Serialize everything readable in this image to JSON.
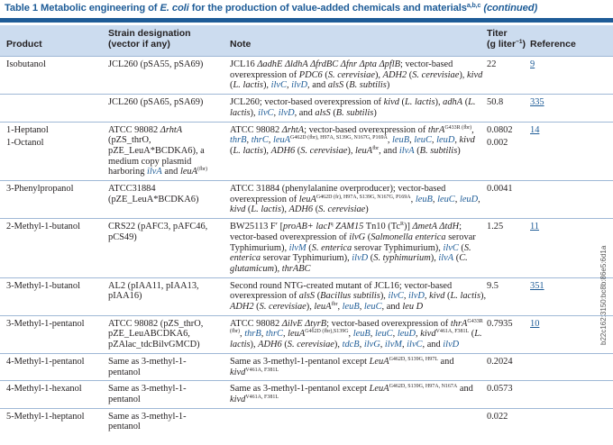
{
  "caption": {
    "table_label": "Table 1",
    "title_part1": "Metabolic engineering of ",
    "title_organism": "E. coli",
    "title_part2": " for the production of value-added chemicals and materials",
    "title_sup": "a,b,c",
    "title_suffix": "(continued)"
  },
  "header": {
    "product": "Product",
    "strain_line1": "Strain designation",
    "strain_line2": "(vector if any)",
    "note": "Note",
    "titer_line1": "Titer",
    "titer_line2": "(g liter",
    "titer_sup": "−1",
    "titer_close": ")",
    "reference": "Reference"
  },
  "watermark": "b22c162:3150:bc8b:86e5:6d1a",
  "rows": [
    {
      "product": "Isobutanol",
      "strain": "JCL260 (pSA55, pSA69)",
      "note_html": "JCL16 <i>ΔadhE ΔldhA ΔfrdBC Δfnr Δpta ΔpflB</i>; vector-based overexpression of <i>PDC6</i> (<i>S. cerevisiae</i>), <i>ADH2</i> (<i>S. cerevisiae</i>), <i>kivd</i> (<i>L. lactis</i>), <i class=\"blue\">ilvC</i>, <i class=\"blue\">ilvD</i>, and <i>alsS</i> (<i>B. subtilis</i>)",
      "titer": "22",
      "reference": "9"
    },
    {
      "product": "",
      "strain": "JCL260 (pSA65, pSA69)",
      "note_html": "JCL260; vector-based overexpression of <i>kivd</i> (<i>L. lactis</i>), <i>adhA</i> (<i>L. lactis</i>), <i class=\"blue\">ilvC</i>, <i class=\"blue\">ilvD</i>, and <i>alsS</i> (<i>B. subtilis</i>)",
      "titer": "50.8",
      "reference": "335"
    },
    {
      "product": "1-Heptanol",
      "product2": "1-Octanol",
      "strain_html": "ATCC 98082 <i>ΔrhtA</i><br>(pZS_thrO,<br>pZE_LeuA*BCDKA6), a<br>medium copy plasmid<br>harboring <i class=\"blue\">ilvA</i> and <i>leuA</i><sup class=\"g\">(fbr)</sup>",
      "note_html": "ATCC 98082 <i>ΔrhtA</i>; vector-based overexpression of <i>thrA</i><sup class=\"g\">G433R (fbr)</sup>, <i class=\"blue\">thrB</i>, <i class=\"blue\">thrC</i>, <i class=\"blue\">leuA</i><sup class=\"g\">G462D (fbr), H97A, S139G, N167G, P169A</sup>, <i class=\"blue\">leuB</i>, <i class=\"blue\">leuC</i>, <i class=\"blue\">leuD</i>, <i>kivd</i> (<i>L. lactis</i>), <i>ADH6</i> (<i>S. cerevisiae</i>), <i>leuA</i><sup class=\"g\">fbr</sup>, and <i class=\"blue\">ilvA</i> (<i>B. subtilis</i>)",
      "titer": "0.0802",
      "titer2": "0.002",
      "reference": "14"
    },
    {
      "product": "3-Phenylpropanol",
      "strain_html": "ATCC31884<br>(pZE_LeuA*BCDKA6)",
      "note_html": "ATCC 31884 (phenylalanine overproducer); vector-based overexpression of <i>leuA</i><sup class=\"g\">G462D (fr), H97A, S139G, N167G, P169A</sup>, <i class=\"blue\">leuB</i>, <i class=\"blue\">leuC</i>, <i class=\"blue\">leuD</i>, <i>kivd</i> (<i>L. lactis</i>), <i>ADH6</i> (<i>S. cerevisiae</i>)",
      "titer": "0.0041",
      "reference": ""
    },
    {
      "product": "2-Methyl-1-butanol",
      "strain_html": "CRS22 (pAFC3, pAFC46,<br>pCS49)",
      "note_html": "BW25113 F′ [<i>proAB+ lacI</i><sup class=\"g\">q</sup> <i>ZAM15</i> Tn10 (Tc<sup class=\"g\">R</sup>)] <i>ΔmetA ΔtdH</i>; vector-based overexpression of <i>ilvG</i> (<i>Salmonella enterica</i> serovar Typhimurium), <i class=\"blue\">ilvM</i> (<i>S. enterica</i> serovar Typhimurium), <i class=\"blue\">ilvC</i> (<i>S. enterica</i> serovar Typhimurium), <i class=\"blue\">ilvD</i> (<i>S. typhimurium</i>), <i class=\"blue\">ilvA</i> (<i>C. glutamicum</i>), <i>thrABC</i>",
      "titer": "1.25",
      "reference": "11"
    },
    {
      "product": "3-Methyl-1-butanol",
      "strain_html": "AL2 (pIAA11, pIAA13,<br>pIAA16)",
      "note_html": "Second round NTG-created mutant of JCL16; vector-based overexpression of <i>alsS</i> (<i>Bacillus subtilis</i>), <i class=\"blue\">ilvC</i>, <i class=\"blue\">ilvD</i>, <i>kivd</i> (<i>L. lactis</i>), <i>ADH2</i> (<i>S. cerevisiae</i>), <i>leuA</i><sup class=\"g\">fbr</sup>, <i class=\"blue\">leuB</i>, <i class=\"blue\">leuC</i>, and <i>leu D</i>",
      "titer": "9.5",
      "reference": "351"
    },
    {
      "product": "3-Methyl-1-pentanol",
      "strain_html": "ATCC 98082 (pZS_thrO,<br>pZE_LeuABCDKA6,<br>pZAlac_tdcBilvGMCD)",
      "note_html": "ATCC 98082 <i>ΔilvE ΔtyrB</i>; vector-based overexpression of <i>thrA</i><sup class=\"g\">G433R (fbr)</sup>, <i class=\"blue\">thrB</i>, <i class=\"blue\">thrC</i>, <i>leuA</i><sup class=\"g\">G462D (fbr),S139G</sup>, <i class=\"blue\">leuB</i>, <i class=\"blue\">leuC</i>, <i class=\"blue\">leuD</i>, <i>kivd</i><sup class=\"g\">V461A, F381L</sup> (<i>L. lactis</i>), <i>ADH6</i> (<i>S. cerevisiae</i>), <i class=\"blue\">tdcB</i>, <i class=\"blue\">ilvG</i>, <i class=\"blue\">ilvM</i>, <i class=\"blue\">ilvC</i>, and <i class=\"blue\">ilvD</i>",
      "titer": "0.7935",
      "reference": "10"
    },
    {
      "product": "4-Methyl-1-pentanol",
      "strain_html": "Same as 3-methyl-1-<br>pentanol",
      "note_html": "Same as 3-methyl-1-pentanol except <i>LeuA</i><sup class=\"g\">G462D, S139G, H97L</sup> and <i>kivd</i><sup class=\"g\">V461A, F381L</sup>",
      "titer": "0.2024",
      "reference": ""
    },
    {
      "product": "4-Methyl-1-hexanol",
      "strain_html": "Same as 3-methyl-1-<br>pentanol",
      "note_html": "Same as 3-methyl-1-pentanol except <i>LeuA</i><sup class=\"g\">G462D, S139G, H97A, N167A</sup> and <i>kivd</i><sup class=\"g\">V461A, F381L</sup>",
      "titer": "0.0573",
      "reference": ""
    },
    {
      "product": "5-Methyl-1-heptanol",
      "strain_html": "Same as 3-methyl-1-<br>pentanol",
      "note_html": "",
      "titer": "0.022",
      "reference": ""
    }
  ]
}
